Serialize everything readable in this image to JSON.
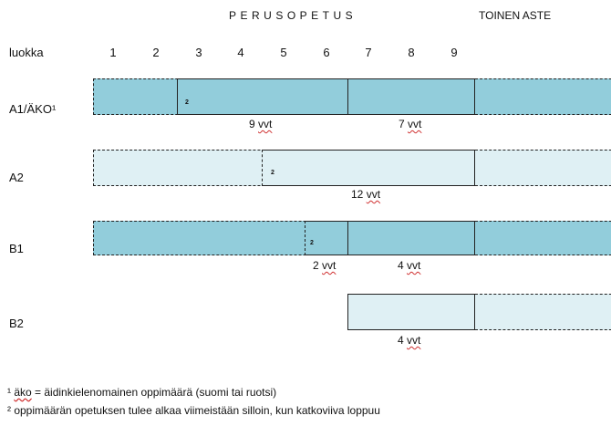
{
  "header": {
    "perusopetus": "PERUSOPETUS",
    "toinen_aste": "TOINEN ASTE"
  },
  "grade_label": "luokka",
  "grades": [
    "1",
    "2",
    "3",
    "4",
    "5",
    "6",
    "7",
    "8",
    "9"
  ],
  "rows": {
    "a1": {
      "label": "A1/ÄKO¹",
      "marker": "2",
      "durations": [
        {
          "num": "9",
          "unit": "vvt"
        },
        {
          "num": "7",
          "unit": "vvt"
        }
      ]
    },
    "a2": {
      "label": "A2",
      "marker": "2",
      "durations": [
        {
          "num": "12",
          "unit": "vvt"
        }
      ]
    },
    "b1": {
      "label": "B1",
      "marker": "2",
      "durations": [
        {
          "num": "2",
          "unit": "vvt"
        },
        {
          "num": "4",
          "unit": "vvt"
        }
      ]
    },
    "b2": {
      "label": "B2",
      "durations": [
        {
          "num": "4",
          "unit": "vvt"
        }
      ]
    }
  },
  "footnotes": {
    "f1_mark": "¹",
    "f1_abbr": "äko",
    "f1_text": " = äidinkielenomainen oppimäärä (suomi tai ruotsi)",
    "f2_mark": "²",
    "f2_text": " oppimäärän opetuksen tulee alkaa viimeistään silloin, kun katkoviiva loppuu"
  },
  "colors": {
    "dark_fill": "#92cddb",
    "light_fill": "#dff0f4",
    "line": "#222222",
    "spellcheck": "#d03030"
  }
}
